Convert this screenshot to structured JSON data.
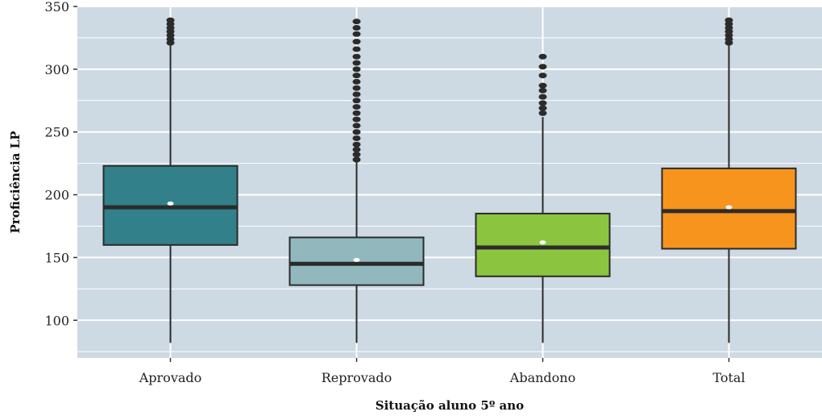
{
  "chart_data": {
    "type": "boxplot",
    "title": "",
    "xlabel": "Situação aluno 5º ano",
    "ylabel": "Proficiência LP",
    "ylim": [
      70,
      350
    ],
    "yticks": [
      100,
      150,
      200,
      250,
      300,
      350
    ],
    "grid": true,
    "legend": "none",
    "categories": [
      "Aprovado",
      "Reprovado",
      "Abandono",
      "Total"
    ],
    "boxes": [
      {
        "category": "Aprovado",
        "whisker_low": 82,
        "q1": 160,
        "median": 190,
        "q3": 223,
        "whisker_high": 320,
        "mean": 193,
        "fill": "#31808a",
        "outliers": [
          321,
          324,
          327,
          330,
          333,
          336,
          339
        ]
      },
      {
        "category": "Reprovado",
        "whisker_low": 82,
        "q1": 128,
        "median": 145,
        "q3": 166,
        "whisker_high": 226,
        "mean": 148,
        "fill": "#91b9bd",
        "outliers": [
          228,
          232,
          236,
          240,
          245,
          250,
          255,
          260,
          265,
          270,
          275,
          280,
          285,
          290,
          295,
          300,
          305,
          310,
          316,
          322,
          328,
          333,
          338
        ]
      },
      {
        "category": "Abandono",
        "whisker_low": 82,
        "q1": 135,
        "median": 158,
        "q3": 185,
        "whisker_high": 262,
        "mean": 162,
        "fill": "#8bc53f",
        "outliers": [
          265,
          269,
          273,
          278,
          283,
          287,
          295,
          302,
          310
        ]
      },
      {
        "category": "Total",
        "whisker_low": 82,
        "q1": 157,
        "median": 187,
        "q3": 221,
        "whisker_high": 320,
        "mean": 190,
        "fill": "#f7941d",
        "outliers": [
          321,
          324,
          327,
          330,
          333,
          336,
          339
        ]
      }
    ],
    "colors": {
      "panel_bg": "#cdd9e3",
      "grid": "#ffffff",
      "box_stroke": "#2b2b2b",
      "mean_point": "#ffffff"
    }
  }
}
